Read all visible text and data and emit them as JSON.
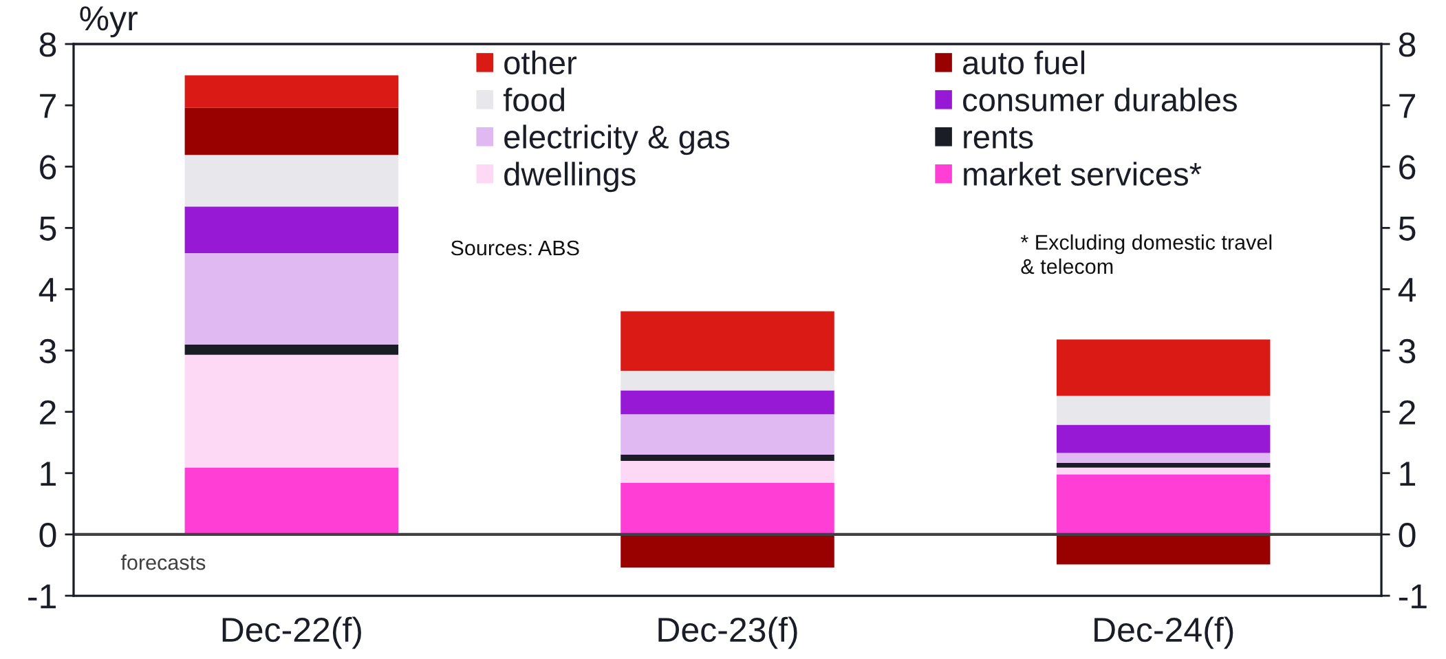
{
  "chart_data": {
    "type": "bar",
    "stacked": true,
    "ylabel": "%yr",
    "categories": [
      "Dec-22(f)",
      "Dec-23(f)",
      "Dec-24(f)"
    ],
    "series": [
      {
        "name": "market services*",
        "color": "#ff3ed6",
        "values": [
          1.09,
          0.84,
          0.98
        ]
      },
      {
        "name": "dwellings",
        "color": "#fdd9f6",
        "values": [
          1.84,
          0.36,
          0.11
        ]
      },
      {
        "name": "rents",
        "color": "#1a1c26",
        "values": [
          0.17,
          0.1,
          0.08
        ]
      },
      {
        "name": "electricity & gas",
        "color": "#e0b8f2",
        "values": [
          1.49,
          0.66,
          0.16
        ]
      },
      {
        "name": "consumer durables",
        "color": "#9719d6",
        "values": [
          0.76,
          0.39,
          0.46
        ]
      },
      {
        "name": "food",
        "color": "#e8e8ec",
        "values": [
          0.84,
          0.32,
          0.47
        ]
      },
      {
        "name": "auto fuel",
        "color": "#990000",
        "values": [
          0.77,
          -0.54,
          -0.49
        ]
      },
      {
        "name": "other",
        "color": "#da1a14",
        "values": [
          0.53,
          0.97,
          0.92
        ]
      }
    ],
    "ylim": [
      -1,
      8
    ],
    "yticks": [
      -1,
      0,
      1,
      2,
      3,
      4,
      5,
      6,
      7,
      8
    ],
    "y2lim": [
      -1,
      8
    ],
    "y2ticks": [
      -1,
      0,
      1,
      2,
      3,
      4,
      5,
      6,
      7,
      8
    ],
    "ref_lines": [
      {
        "axis": "y",
        "value": 0,
        "color": "#404040"
      }
    ],
    "legend": "top",
    "annotations": [
      "Sources: ABS",
      "* Excluding domestic travel\n& telecom",
      "forecasts"
    ]
  }
}
